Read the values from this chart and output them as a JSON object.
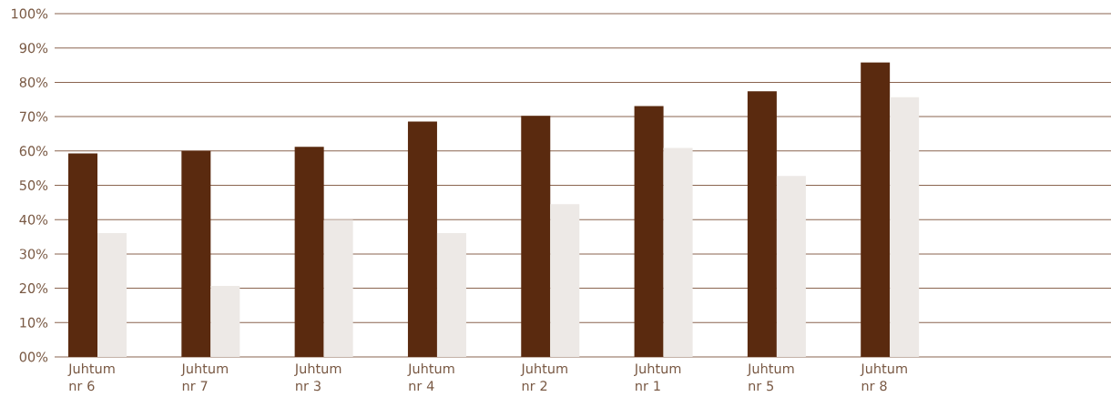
{
  "chart_data": {
    "type": "bar",
    "categories": [
      "Juhtum nr 6",
      "Juhtum nr 7",
      "Juhtum nr 3",
      "Juhtum nr 4",
      "Juhtum nr 2",
      "Juhtum nr 1",
      "Juhtum nr 5",
      "Juhtum nr 8"
    ],
    "series": [
      {
        "color": "#5a2a0f",
        "values": [
          59.3,
          60.0,
          61.2,
          68.6,
          70.2,
          73.1,
          77.4,
          85.8
        ]
      },
      {
        "color": "#ede9e6",
        "values": [
          36.1,
          20.7,
          39.9,
          36.1,
          44.5,
          60.9,
          52.7,
          75.7
        ]
      }
    ],
    "ylim": [
      0,
      100
    ],
    "yticks": [
      {
        "value": 0,
        "label": "00%"
      },
      {
        "value": 10,
        "label": "10%"
      },
      {
        "value": 20,
        "label": "20%"
      },
      {
        "value": 30,
        "label": "30%"
      },
      {
        "value": 40,
        "label": "40%"
      },
      {
        "value": 50,
        "label": "50%"
      },
      {
        "value": 60,
        "label": "60%"
      },
      {
        "value": 70,
        "label": "70%"
      },
      {
        "value": 80,
        "label": "80%"
      },
      {
        "value": 90,
        "label": "90%"
      },
      {
        "value": 100,
        "label": "100%"
      }
    ],
    "grid": "y"
  }
}
